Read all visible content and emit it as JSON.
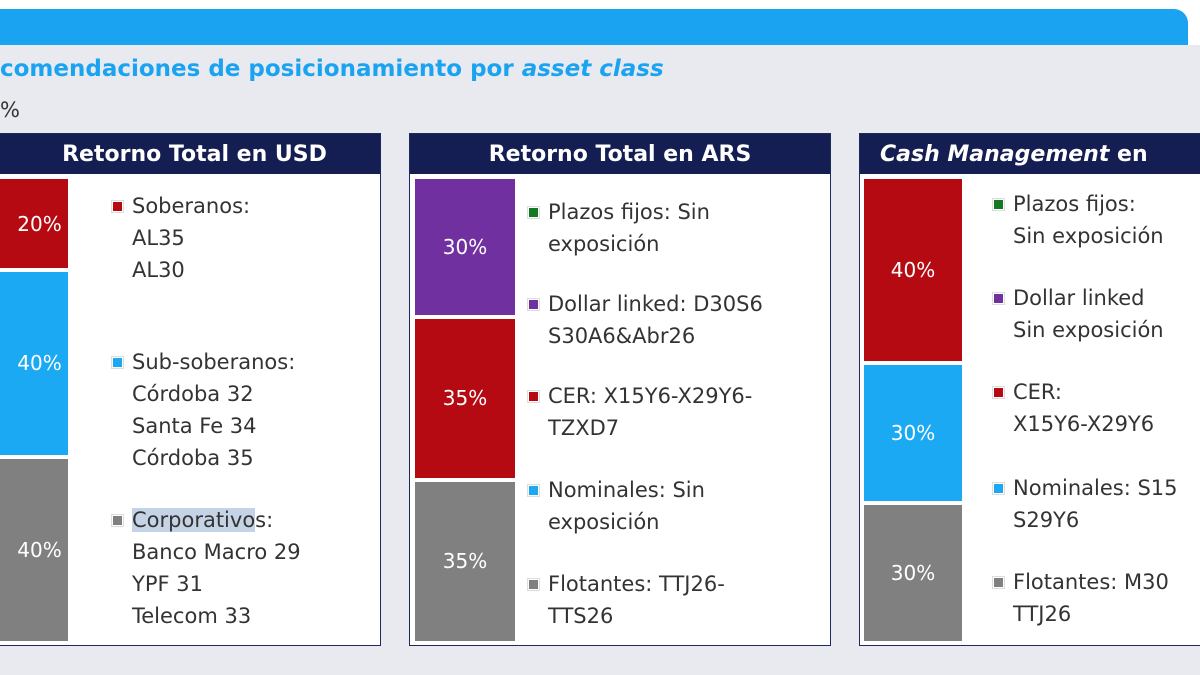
{
  "header_title_prefix": "comendaciones de posicionamiento por ",
  "header_title_italic": "asset class",
  "unit": "%",
  "colors": {
    "red": "#b50a12",
    "blue": "#1aa9f2",
    "gray": "#808080",
    "purple": "#7030a0",
    "green": "#137a23",
    "navy": "#141e52"
  },
  "chart_data": [
    {
      "type": "bar",
      "title": "Retorno Total en USD",
      "stacked": true,
      "segments": [
        {
          "name": "Soberanos",
          "value": 20,
          "label": "20%",
          "color": "#b50a12"
        },
        {
          "name": "Sub-soberanos",
          "value": 40,
          "label": "40%",
          "color": "#1aa9f2"
        },
        {
          "name": "Corporativos",
          "value": 40,
          "label": "40%",
          "color": "#808080"
        }
      ],
      "legend": [
        {
          "color": "#b50a12",
          "lines": [
            "Soberanos:",
            "AL35",
            "AL30"
          ]
        },
        {
          "color": "#1aa9f2",
          "lines": [
            "Sub-soberanos:",
            "Córdoba 32",
            "Santa Fe 34",
            "Córdoba 35"
          ]
        },
        {
          "color": "#808080",
          "lines": [
            "Corporativos:",
            "Banco Macro 29",
            "YPF 31",
            "Telecom 33"
          ]
        }
      ]
    },
    {
      "type": "bar",
      "title": "Retorno Total en ARS",
      "stacked": true,
      "segments": [
        {
          "name": "Dollar linked",
          "value": 30,
          "label": "30%",
          "color": "#7030a0"
        },
        {
          "name": "CER",
          "value": 35,
          "label": "35%",
          "color": "#b50a12"
        },
        {
          "name": "Flotantes",
          "value": 35,
          "label": "35%",
          "color": "#808080"
        }
      ],
      "legend": [
        {
          "color": "#137a23",
          "lines": [
            "Plazos fijos: Sin",
            "exposición"
          ]
        },
        {
          "color": "#7030a0",
          "lines": [
            "Dollar linked: D30S6",
            "S30A6&Abr26"
          ]
        },
        {
          "color": "#b50a12",
          "lines": [
            "CER: X15Y6-X29Y6-",
            "TZXD7"
          ]
        },
        {
          "color": "#1aa9f2",
          "lines": [
            "Nominales: Sin",
            "exposición"
          ]
        },
        {
          "color": "#808080",
          "lines": [
            "Flotantes: TTJ26-",
            "TTS26"
          ]
        }
      ]
    },
    {
      "type": "bar",
      "title_italic": "Cash Management",
      "title_rest": " en",
      "stacked": true,
      "segments": [
        {
          "name": "CER",
          "value": 40,
          "label": "40%",
          "color": "#b50a12"
        },
        {
          "name": "Nominales",
          "value": 30,
          "label": "30%",
          "color": "#1aa9f2"
        },
        {
          "name": "Flotantes",
          "value": 30,
          "label": "30%",
          "color": "#808080"
        }
      ],
      "legend": [
        {
          "color": "#137a23",
          "lines": [
            "Plazos fijos:",
            "Sin exposición"
          ]
        },
        {
          "color": "#7030a0",
          "lines": [
            "Dollar linked",
            "Sin exposición"
          ]
        },
        {
          "color": "#b50a12",
          "lines": [
            "CER:",
            "X15Y6-X29Y6"
          ]
        },
        {
          "color": "#1aa9f2",
          "lines": [
            "Nominales: S15",
            "S29Y6"
          ]
        },
        {
          "color": "#808080",
          "lines": [
            "Flotantes: M30",
            "TTJ26"
          ]
        }
      ]
    }
  ]
}
